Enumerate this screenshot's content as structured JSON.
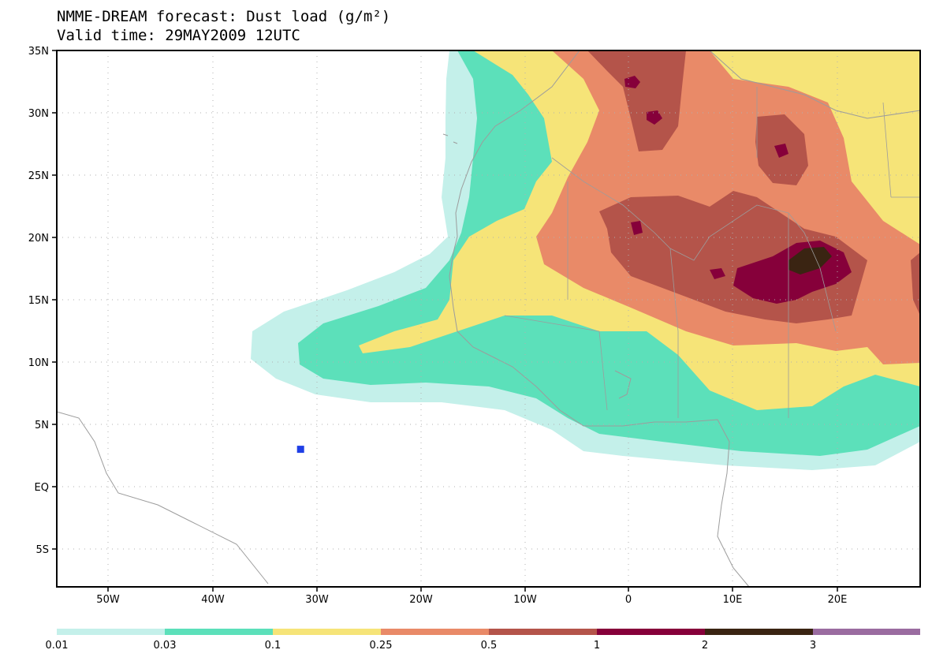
{
  "header": {
    "title": "NMME-DREAM forecast: Dust load (g/m²)",
    "valid_time": "Valid time: 29MAY2009 12UTC"
  },
  "map": {
    "lat_labels": [
      "35N",
      "30N",
      "25N",
      "20N",
      "15N",
      "10N",
      "5N",
      "EQ",
      "5S"
    ],
    "lon_labels": [
      "50W",
      "40W",
      "30W",
      "20W",
      "10W",
      "0",
      "10E",
      "20E"
    ],
    "marker": {
      "name": "station",
      "lat": 3,
      "lon": -31.5,
      "color": "#1f3fe6"
    }
  },
  "legend": {
    "thresholds": [
      "0.01",
      "0.03",
      "0.1",
      "0.25",
      "0.5",
      "1",
      "2",
      "3"
    ],
    "colors": [
      "#c4f0ea",
      "#5ce0ba",
      "#f6e478",
      "#e98a68",
      "#b4544a",
      "#86003a",
      "#3a2412",
      "#9a6ca0"
    ]
  }
}
